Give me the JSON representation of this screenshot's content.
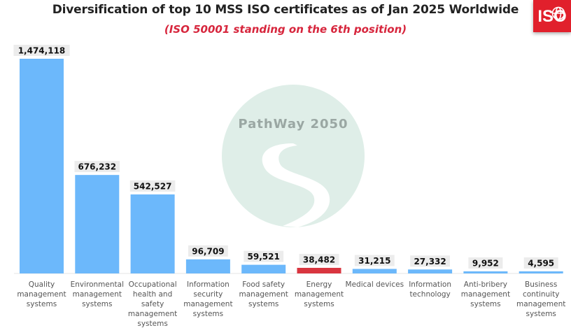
{
  "title": "Diversification of top 10 MSS ISO certificates as of Jan 2025 Worldwide",
  "subtitle": "(ISO 50001 standing on the 6th position)",
  "logo": {
    "text": "ISO",
    "color": "#e1202c"
  },
  "watermark": {
    "text": "PathWay 2050"
  },
  "colors": {
    "bar": "#6cb8fb",
    "highlight": "#d9353f",
    "label_bg": "#ececec"
  },
  "chart_data": {
    "type": "bar",
    "title": "Diversification of top 10 MSS ISO certificates as of Jan 2025 Worldwide",
    "subtitle": "(ISO 50001 standing on the 6th position)",
    "xlabel": "",
    "ylabel": "",
    "ylim": [
      0,
      1474118
    ],
    "grid": false,
    "legend": "none",
    "highlight_index": 5,
    "categories": [
      "Quality management systems",
      "Environmental management systems",
      "Occupational health and safety management systems",
      "Information security management systems",
      "Food safety management systems",
      "Energy management systems",
      "Medical devices",
      "Information technology",
      "Anti-bribery management systems",
      "Business continuity management systems"
    ],
    "values": [
      1474118,
      676232,
      542527,
      96709,
      59521,
      38482,
      31215,
      27332,
      9952,
      4595
    ],
    "value_labels": [
      "1,474,118",
      "676,232",
      "542,527",
      "96,709",
      "59,521",
      "38,482",
      "31,215",
      "27,332",
      "9,952",
      "4,595"
    ],
    "category_lines": [
      [
        "Quality",
        "management",
        "systems"
      ],
      [
        "Environmental",
        "management",
        "systems"
      ],
      [
        "Occupational",
        "health and",
        "safety",
        "management",
        "systems"
      ],
      [
        "Information",
        "security",
        "management",
        "systems"
      ],
      [
        "Food safety",
        "management",
        "systems"
      ],
      [
        "Energy",
        "management",
        "systems"
      ],
      [
        "Medical devices"
      ],
      [
        "Information",
        "technology"
      ],
      [
        "Anti-bribery",
        "management",
        "systems"
      ],
      [
        "Business",
        "continuity",
        "management",
        "systems"
      ]
    ]
  }
}
